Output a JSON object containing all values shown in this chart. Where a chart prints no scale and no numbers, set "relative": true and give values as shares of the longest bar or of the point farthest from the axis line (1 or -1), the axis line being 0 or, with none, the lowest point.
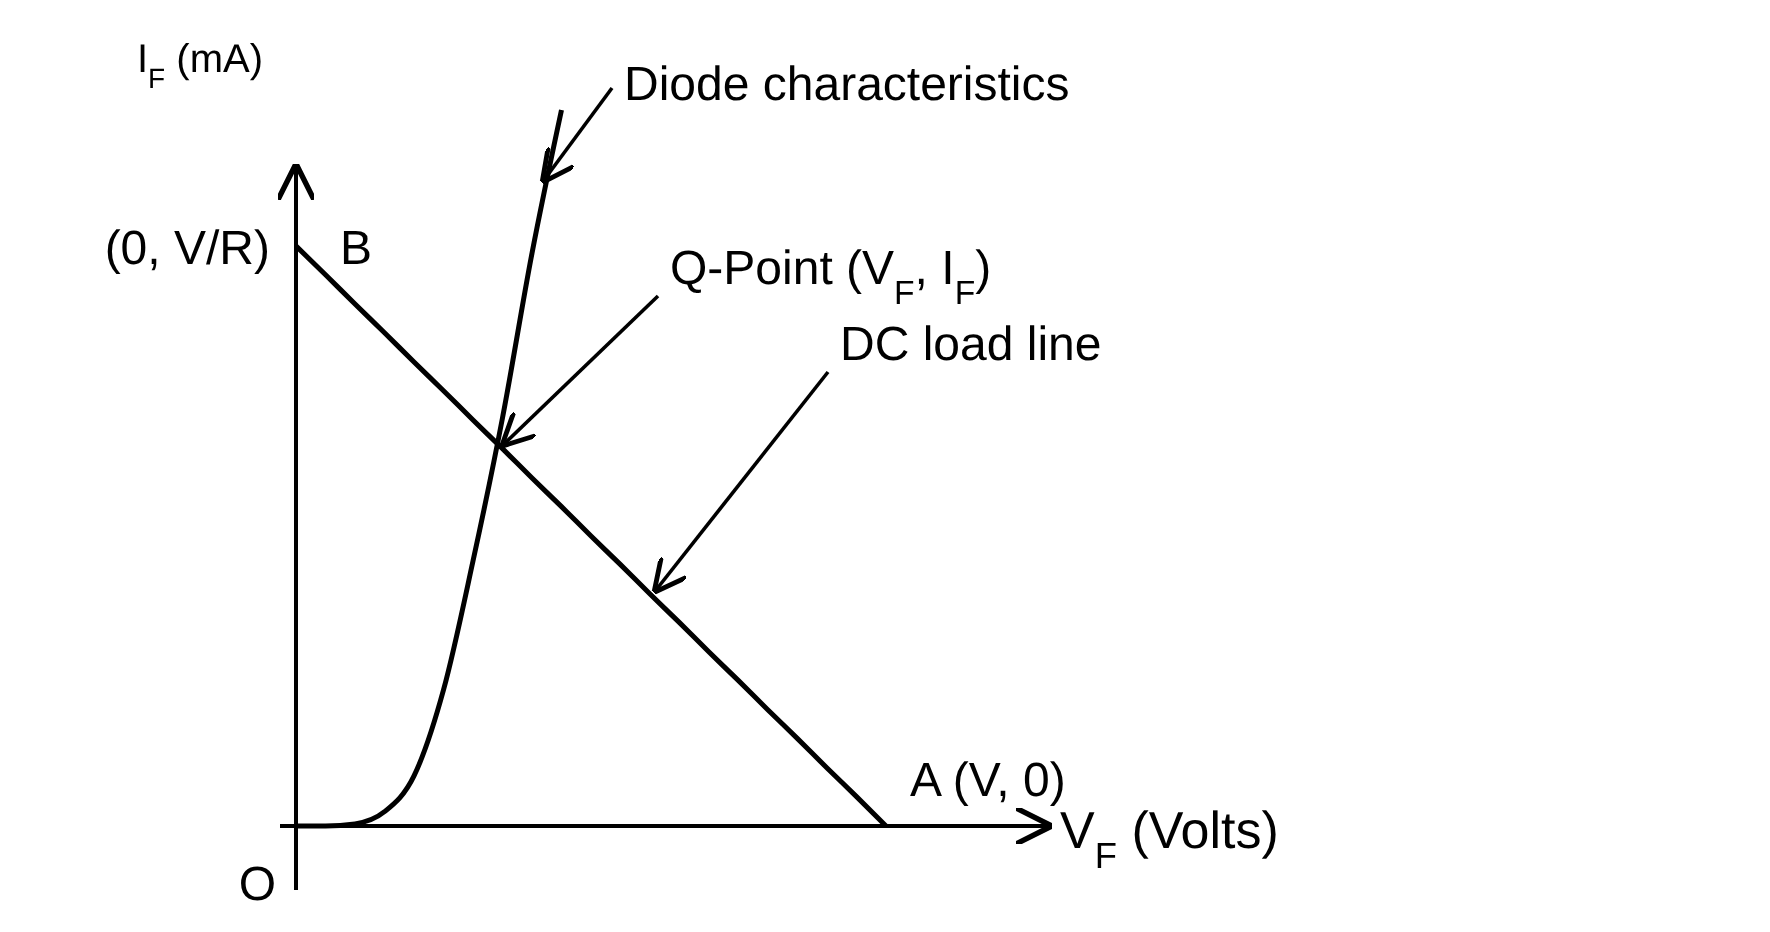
{
  "chart_data": {
    "type": "line",
    "relative": true,
    "xlabel": "V$_{F}$ (Volts)",
    "ylabel": "I$_{F}$ (mA)",
    "line_style": "solid",
    "categories": [
      null,
      null,
      null,
      null,
      null,
      null,
      null,
      null,
      null,
      null,
      null,
      null,
      null,
      null,
      null,
      null,
      null,
      null,
      null,
      null,
      null
    ],
    "series": [
      {
        "color": "#000000",
        "values": [
          0,
          0,
          0.003,
          0.02,
          0.07,
          0.19,
          0.37,
          0.57,
          0.8,
          1.0,
          null,
          null,
          null,
          null,
          null,
          null,
          null,
          null,
          null,
          null,
          null
        ]
      },
      {
        "color": "#000000",
        "values": [
          0.81,
          0.77,
          0.729,
          0.689,
          0.648,
          0.608,
          0.567,
          0.527,
          0.486,
          0.446,
          0.405,
          0.365,
          0.324,
          0.284,
          0.243,
          0.203,
          0.162,
          0.122,
          0.081,
          0.041,
          0
        ]
      }
    ],
    "annotations": [
      "Diode characteristics",
      "Q-Point (V$_{F}$, I$_{F}$)",
      "DC load line",
      "A (V, 0)",
      "B",
      "(0, V/R)",
      "O"
    ]
  }
}
